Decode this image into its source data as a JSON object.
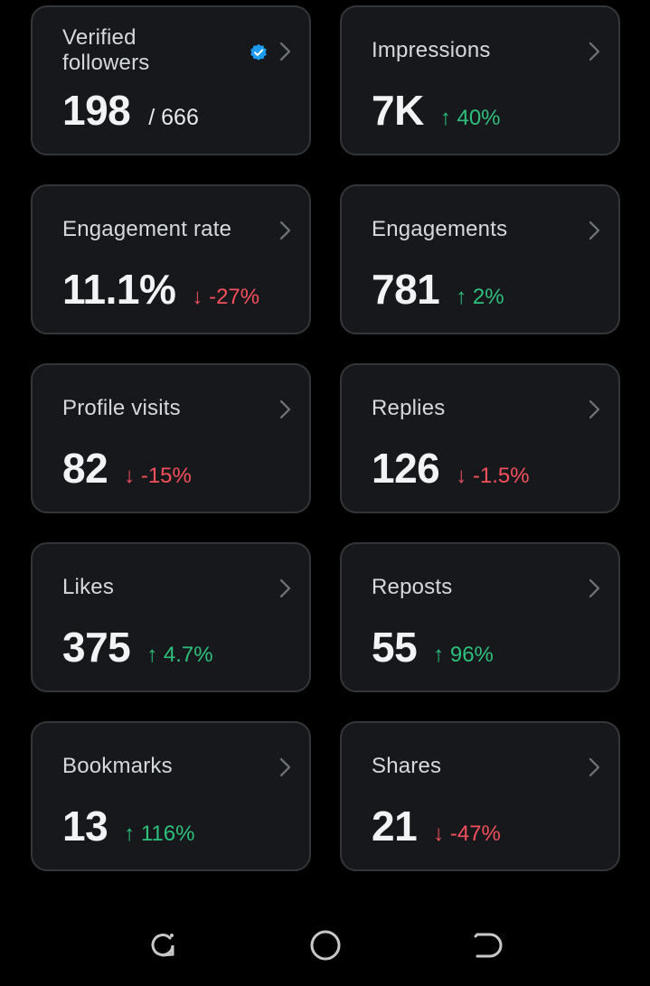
{
  "cards": [
    {
      "label": "Verified followers",
      "value": "198",
      "total": "/ 666",
      "change": "",
      "direction": "none",
      "verified_badge": "verified-badge-icon"
    },
    {
      "label": "Impressions",
      "value": "7K",
      "change": "↑ 40%",
      "direction": "up"
    },
    {
      "label": "Engagement rate",
      "value": "11.1%",
      "change": "↓ -27%",
      "direction": "down"
    },
    {
      "label": "Engagements",
      "value": "781",
      "change": "↑ 2%",
      "direction": "up"
    },
    {
      "label": "Profile visits",
      "value": "82",
      "change": "↓ -15%",
      "direction": "down"
    },
    {
      "label": "Replies",
      "value": "126",
      "change": "↓ -1.5%",
      "direction": "down"
    },
    {
      "label": "Likes",
      "value": "375",
      "change": "↑ 4.7%",
      "direction": "up"
    },
    {
      "label": "Reposts",
      "value": "55",
      "change": "↑ 96%",
      "direction": "up"
    },
    {
      "label": "Bookmarks",
      "value": "13",
      "change": "↑ 116%",
      "direction": "up"
    },
    {
      "label": "Shares",
      "value": "21",
      "change": "↓ -47%",
      "direction": "down"
    }
  ],
  "colors": {
    "background": "#000000",
    "card": "#16181c",
    "card_border": "#333639",
    "positive": "#2ec07b",
    "negative": "#f4505c",
    "verified": "#1d9bf0"
  },
  "navbar": {
    "buttons": [
      "recent-apps-icon",
      "home-icon",
      "back-icon"
    ]
  }
}
